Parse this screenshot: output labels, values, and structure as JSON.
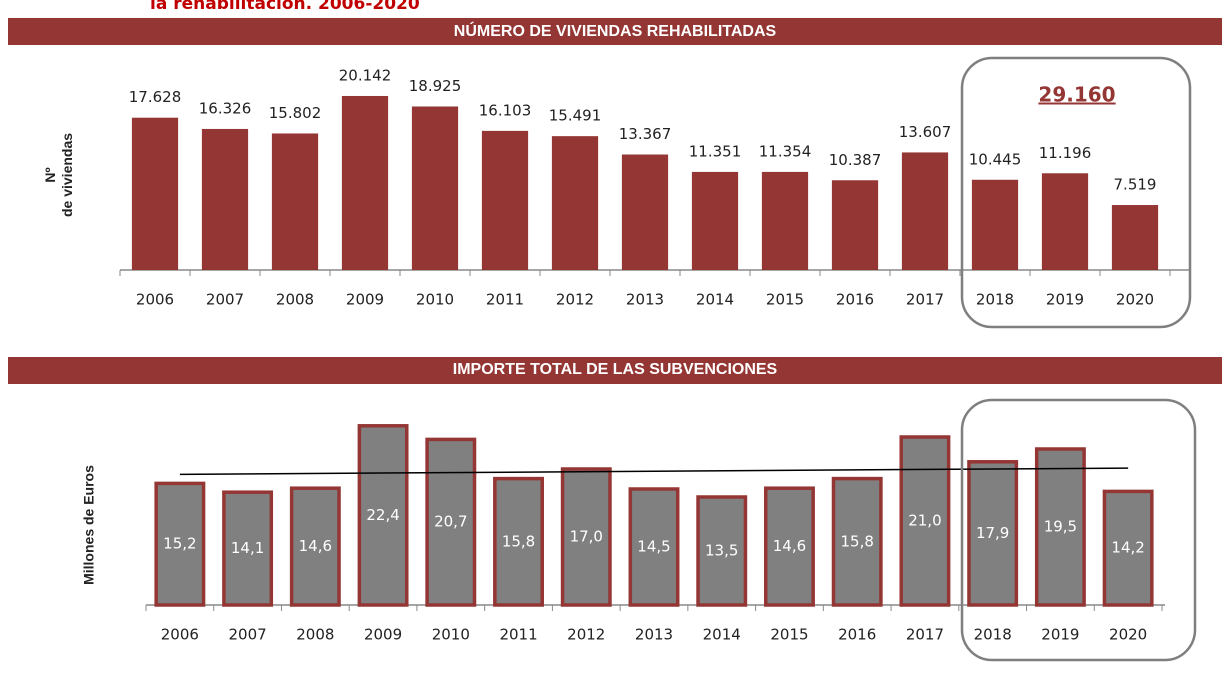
{
  "header": "la rehabilitación. 2006-2020",
  "chart_data": [
    {
      "type": "bar",
      "title": "NÚMERO DE VIVIENDAS REHABILITADAS",
      "y_label": [
        "Nº",
        "de viviendas"
      ],
      "categories": [
        "2006",
        "2007",
        "2008",
        "2009",
        "2010",
        "2011",
        "2012",
        "2013",
        "2014",
        "2015",
        "2016",
        "2017",
        "2018",
        "2019",
        "2020"
      ],
      "values": [
        17628,
        16326,
        15802,
        20142,
        18925,
        16103,
        15491,
        13367,
        11351,
        11354,
        10387,
        13607,
        10445,
        11196,
        7519
      ],
      "value_labels": [
        "17.628",
        "16.326",
        "15.802",
        "20.142",
        "18.925",
        "16.103",
        "15.491",
        "13.367",
        "11.351",
        "11.354",
        "10.387",
        "13.607",
        "10.445",
        "11.196",
        "7.519"
      ],
      "color": "#943634",
      "ylim": [
        0,
        25000
      ],
      "annotation": "29.160"
    },
    {
      "type": "bar",
      "title": "IMPORTE TOTAL DE LAS SUBVENCIONES",
      "y_label": [
        "Millones de Euros"
      ],
      "categories": [
        "2006",
        "2007",
        "2008",
        "2009",
        "2010",
        "2011",
        "2012",
        "2013",
        "2014",
        "2015",
        "2016",
        "2017",
        "2018",
        "2019",
        "2020"
      ],
      "values": [
        15.2,
        14.1,
        14.6,
        22.4,
        20.7,
        15.8,
        17.0,
        14.5,
        13.5,
        14.6,
        15.8,
        21.0,
        17.9,
        19.5,
        14.2
      ],
      "value_labels": [
        "15,2",
        "14,1",
        "14,6",
        "22,4",
        "20,7",
        "15,8",
        "17,0",
        "14,5",
        "13,5",
        "14,6",
        "15,8",
        "21,0",
        "17,9",
        "19,5",
        "14,2"
      ],
      "color": "#808080",
      "edge_color": "#943634",
      "trendline": true,
      "ylim": [
        0,
        25
      ]
    }
  ]
}
